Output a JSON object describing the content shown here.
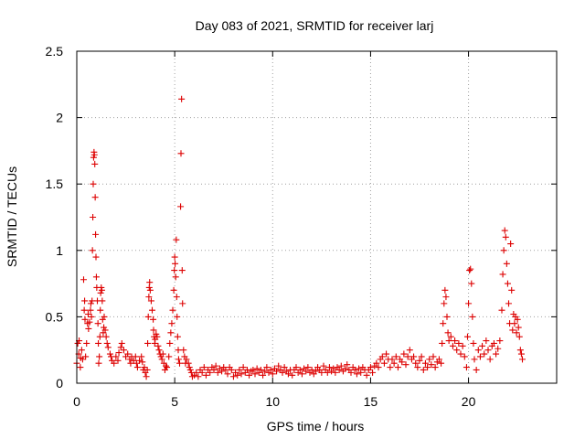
{
  "chart_data": {
    "type": "scatter",
    "title": "Day 083 of 2021, SRMTID for receiver larj",
    "xlabel": "GPS time / hours",
    "ylabel": "SRMTID / TECUs",
    "xlim": [
      0,
      24.5
    ],
    "ylim": [
      0,
      2.5
    ],
    "grid": true,
    "x_ticks": [
      0,
      5,
      10,
      15,
      20
    ],
    "x_tick_labels": [
      "0",
      "5",
      "10",
      "15",
      "20"
    ],
    "y_ticks": [
      0,
      0.5,
      1,
      1.5,
      2,
      2.5
    ],
    "y_tick_labels": [
      "0",
      "0.5",
      "1",
      "1.5",
      "2",
      "2.5"
    ],
    "marker": "+",
    "color": "#dd0000",
    "series": [
      {
        "name": "SRMTID",
        "points": [
          [
            0.0,
            0.15
          ],
          [
            0.05,
            0.3
          ],
          [
            0.1,
            0.22
          ],
          [
            0.12,
            0.32
          ],
          [
            0.18,
            0.12
          ],
          [
            0.2,
            0.19
          ],
          [
            0.25,
            0.25
          ],
          [
            0.3,
            0.18
          ],
          [
            0.35,
            0.78
          ],
          [
            0.38,
            0.55
          ],
          [
            0.4,
            0.62
          ],
          [
            0.42,
            0.48
          ],
          [
            0.45,
            0.2
          ],
          [
            0.5,
            0.3
          ],
          [
            0.55,
            0.45
          ],
          [
            0.58,
            0.52
          ],
          [
            0.6,
            0.41
          ],
          [
            0.65,
            0.46
          ],
          [
            0.7,
            0.55
          ],
          [
            0.72,
            0.6
          ],
          [
            0.75,
            0.5
          ],
          [
            0.78,
            0.62
          ],
          [
            0.8,
            1.0
          ],
          [
            0.82,
            1.25
          ],
          [
            0.84,
            1.5
          ],
          [
            0.86,
            1.7
          ],
          [
            0.88,
            1.74
          ],
          [
            0.9,
            1.72
          ],
          [
            0.92,
            1.65
          ],
          [
            0.94,
            1.4
          ],
          [
            0.96,
            1.12
          ],
          [
            0.98,
            0.95
          ],
          [
            1.0,
            0.8
          ],
          [
            1.02,
            0.72
          ],
          [
            1.05,
            0.62
          ],
          [
            1.08,
            0.45
          ],
          [
            1.1,
            0.3
          ],
          [
            1.12,
            0.15
          ],
          [
            1.15,
            0.2
          ],
          [
            1.18,
            0.35
          ],
          [
            1.2,
            0.55
          ],
          [
            1.22,
            0.68
          ],
          [
            1.25,
            0.72
          ],
          [
            1.28,
            0.7
          ],
          [
            1.3,
            0.62
          ],
          [
            1.32,
            0.48
          ],
          [
            1.35,
            0.38
          ],
          [
            1.38,
            0.42
          ],
          [
            1.4,
            0.5
          ],
          [
            1.45,
            0.4
          ],
          [
            1.5,
            0.35
          ],
          [
            1.55,
            0.3
          ],
          [
            1.6,
            0.27
          ],
          [
            1.7,
            0.22
          ],
          [
            1.75,
            0.2
          ],
          [
            1.8,
            0.17
          ],
          [
            1.9,
            0.15
          ],
          [
            2.0,
            0.2
          ],
          [
            2.1,
            0.17
          ],
          [
            2.15,
            0.23
          ],
          [
            2.25,
            0.27
          ],
          [
            2.3,
            0.3
          ],
          [
            2.4,
            0.25
          ],
          [
            2.5,
            0.2
          ],
          [
            2.6,
            0.22
          ],
          [
            2.7,
            0.18
          ],
          [
            2.75,
            0.15
          ],
          [
            2.8,
            0.2
          ],
          [
            2.9,
            0.17
          ],
          [
            3.0,
            0.2
          ],
          [
            3.05,
            0.15
          ],
          [
            3.1,
            0.12
          ],
          [
            3.2,
            0.17
          ],
          [
            3.3,
            0.2
          ],
          [
            3.35,
            0.16
          ],
          [
            3.4,
            0.1
          ],
          [
            3.45,
            0.12
          ],
          [
            3.5,
            0.08
          ],
          [
            3.55,
            0.05
          ],
          [
            3.6,
            0.1
          ],
          [
            3.62,
            0.3
          ],
          [
            3.65,
            0.5
          ],
          [
            3.68,
            0.65
          ],
          [
            3.7,
            0.72
          ],
          [
            3.72,
            0.76
          ],
          [
            3.75,
            0.7
          ],
          [
            3.8,
            0.62
          ],
          [
            3.85,
            0.55
          ],
          [
            3.9,
            0.48
          ],
          [
            3.92,
            0.4
          ],
          [
            3.95,
            0.35
          ],
          [
            3.98,
            0.3
          ],
          [
            4.0,
            0.33
          ],
          [
            4.05,
            0.37
          ],
          [
            4.1,
            0.35
          ],
          [
            4.15,
            0.28
          ],
          [
            4.2,
            0.25
          ],
          [
            4.25,
            0.22
          ],
          [
            4.3,
            0.2
          ],
          [
            4.35,
            0.18
          ],
          [
            4.4,
            0.22
          ],
          [
            4.45,
            0.15
          ],
          [
            4.5,
            0.1
          ],
          [
            4.55,
            0.13
          ],
          [
            4.6,
            0.12
          ],
          [
            4.7,
            0.2
          ],
          [
            4.75,
            0.3
          ],
          [
            4.8,
            0.38
          ],
          [
            4.85,
            0.45
          ],
          [
            4.9,
            0.55
          ],
          [
            4.95,
            0.7
          ],
          [
            4.98,
            0.85
          ],
          [
            5.0,
            0.95
          ],
          [
            5.02,
            0.9
          ],
          [
            5.05,
            0.8
          ],
          [
            5.08,
            1.08
          ],
          [
            5.1,
            0.65
          ],
          [
            5.12,
            0.5
          ],
          [
            5.15,
            0.35
          ],
          [
            5.18,
            0.25
          ],
          [
            5.2,
            0.18
          ],
          [
            5.25,
            0.15
          ],
          [
            5.3,
            1.33
          ],
          [
            5.32,
            1.73
          ],
          [
            5.35,
            2.14
          ],
          [
            5.38,
            0.85
          ],
          [
            5.4,
            0.6
          ],
          [
            5.45,
            0.25
          ],
          [
            5.5,
            0.2
          ],
          [
            5.55,
            0.15
          ],
          [
            5.6,
            0.18
          ],
          [
            5.7,
            0.15
          ],
          [
            5.75,
            0.12
          ],
          [
            5.8,
            0.1
          ],
          [
            5.85,
            0.08
          ],
          [
            5.9,
            0.05
          ],
          [
            6.0,
            0.06
          ],
          [
            6.1,
            0.08
          ],
          [
            6.2,
            0.05
          ],
          [
            6.3,
            0.1
          ],
          [
            6.4,
            0.08
          ],
          [
            6.5,
            0.12
          ],
          [
            6.6,
            0.06
          ],
          [
            6.7,
            0.1
          ],
          [
            6.8,
            0.08
          ],
          [
            6.9,
            0.12
          ],
          [
            7.0,
            0.1
          ],
          [
            7.1,
            0.13
          ],
          [
            7.2,
            0.08
          ],
          [
            7.3,
            0.11
          ],
          [
            7.4,
            0.09
          ],
          [
            7.5,
            0.12
          ],
          [
            7.6,
            0.1
          ],
          [
            7.7,
            0.07
          ],
          [
            7.8,
            0.12
          ],
          [
            7.9,
            0.1
          ],
          [
            8.0,
            0.05
          ],
          [
            8.1,
            0.08
          ],
          [
            8.2,
            0.06
          ],
          [
            8.3,
            0.1
          ],
          [
            8.4,
            0.07
          ],
          [
            8.5,
            0.12
          ],
          [
            8.6,
            0.08
          ],
          [
            8.7,
            0.1
          ],
          [
            8.8,
            0.06
          ],
          [
            8.9,
            0.09
          ],
          [
            9.0,
            0.1
          ],
          [
            9.1,
            0.07
          ],
          [
            9.2,
            0.11
          ],
          [
            9.3,
            0.08
          ],
          [
            9.4,
            0.1
          ],
          [
            9.5,
            0.06
          ],
          [
            9.6,
            0.09
          ],
          [
            9.7,
            0.12
          ],
          [
            9.8,
            0.08
          ],
          [
            9.9,
            0.1
          ],
          [
            10.0,
            0.07
          ],
          [
            10.1,
            0.11
          ],
          [
            10.2,
            0.09
          ],
          [
            10.3,
            0.13
          ],
          [
            10.4,
            0.1
          ],
          [
            10.5,
            0.08
          ],
          [
            10.6,
            0.12
          ],
          [
            10.7,
            0.09
          ],
          [
            10.8,
            0.07
          ],
          [
            10.9,
            0.1
          ],
          [
            11.0,
            0.06
          ],
          [
            11.1,
            0.1
          ],
          [
            11.2,
            0.12
          ],
          [
            11.3,
            0.08
          ],
          [
            11.4,
            0.1
          ],
          [
            11.5,
            0.07
          ],
          [
            11.6,
            0.11
          ],
          [
            11.7,
            0.09
          ],
          [
            11.8,
            0.12
          ],
          [
            11.9,
            0.08
          ],
          [
            12.0,
            0.1
          ],
          [
            12.1,
            0.07
          ],
          [
            12.2,
            0.09
          ],
          [
            12.3,
            0.12
          ],
          [
            12.4,
            0.1
          ],
          [
            12.5,
            0.08
          ],
          [
            12.6,
            0.13
          ],
          [
            12.7,
            0.1
          ],
          [
            12.8,
            0.08
          ],
          [
            12.9,
            0.12
          ],
          [
            13.0,
            0.09
          ],
          [
            13.1,
            0.11
          ],
          [
            13.2,
            0.08
          ],
          [
            13.3,
            0.12
          ],
          [
            13.4,
            0.1
          ],
          [
            13.5,
            0.13
          ],
          [
            13.6,
            0.09
          ],
          [
            13.7,
            0.11
          ],
          [
            13.8,
            0.14
          ],
          [
            13.9,
            0.1
          ],
          [
            14.0,
            0.08
          ],
          [
            14.1,
            0.12
          ],
          [
            14.2,
            0.1
          ],
          [
            14.3,
            0.07
          ],
          [
            14.4,
            0.11
          ],
          [
            14.5,
            0.08
          ],
          [
            14.6,
            0.12
          ],
          [
            14.7,
            0.1
          ],
          [
            14.8,
            0.06
          ],
          [
            14.9,
            0.1
          ],
          [
            15.0,
            0.12
          ],
          [
            15.1,
            0.08
          ],
          [
            15.2,
            0.13
          ],
          [
            15.3,
            0.15
          ],
          [
            15.4,
            0.12
          ],
          [
            15.5,
            0.18
          ],
          [
            15.6,
            0.2
          ],
          [
            15.7,
            0.15
          ],
          [
            15.8,
            0.22
          ],
          [
            15.9,
            0.18
          ],
          [
            16.0,
            0.12
          ],
          [
            16.1,
            0.18
          ],
          [
            16.2,
            0.15
          ],
          [
            16.3,
            0.2
          ],
          [
            16.4,
            0.12
          ],
          [
            16.5,
            0.18
          ],
          [
            16.6,
            0.16
          ],
          [
            16.7,
            0.22
          ],
          [
            16.8,
            0.14
          ],
          [
            16.9,
            0.2
          ],
          [
            17.0,
            0.25
          ],
          [
            17.1,
            0.18
          ],
          [
            17.2,
            0.2
          ],
          [
            17.3,
            0.15
          ],
          [
            17.4,
            0.12
          ],
          [
            17.5,
            0.17
          ],
          [
            17.6,
            0.2
          ],
          [
            17.7,
            0.1
          ],
          [
            17.8,
            0.15
          ],
          [
            17.9,
            0.12
          ],
          [
            18.0,
            0.18
          ],
          [
            18.1,
            0.14
          ],
          [
            18.2,
            0.2
          ],
          [
            18.3,
            0.12
          ],
          [
            18.4,
            0.16
          ],
          [
            18.5,
            0.18
          ],
          [
            18.6,
            0.15
          ],
          [
            18.65,
            0.3
          ],
          [
            18.7,
            0.45
          ],
          [
            18.75,
            0.6
          ],
          [
            18.8,
            0.7
          ],
          [
            18.85,
            0.65
          ],
          [
            18.9,
            0.5
          ],
          [
            18.95,
            0.38
          ],
          [
            19.0,
            0.32
          ],
          [
            19.1,
            0.35
          ],
          [
            19.2,
            0.28
          ],
          [
            19.3,
            0.32
          ],
          [
            19.4,
            0.25
          ],
          [
            19.5,
            0.3
          ],
          [
            19.6,
            0.22
          ],
          [
            19.7,
            0.28
          ],
          [
            19.8,
            0.2
          ],
          [
            19.9,
            0.12
          ],
          [
            19.95,
            0.35
          ],
          [
            20.0,
            0.6
          ],
          [
            20.05,
            0.85
          ],
          [
            20.1,
            0.86
          ],
          [
            20.15,
            0.75
          ],
          [
            20.2,
            0.5
          ],
          [
            20.25,
            0.3
          ],
          [
            20.3,
            0.18
          ],
          [
            20.4,
            0.1
          ],
          [
            20.5,
            0.25
          ],
          [
            20.6,
            0.2
          ],
          [
            20.7,
            0.28
          ],
          [
            20.8,
            0.22
          ],
          [
            20.9,
            0.32
          ],
          [
            21.0,
            0.25
          ],
          [
            21.1,
            0.18
          ],
          [
            21.2,
            0.28
          ],
          [
            21.3,
            0.3
          ],
          [
            21.4,
            0.22
          ],
          [
            21.5,
            0.26
          ],
          [
            21.6,
            0.32
          ],
          [
            21.7,
            0.55
          ],
          [
            21.75,
            0.82
          ],
          [
            21.8,
            1.0
          ],
          [
            21.85,
            1.15
          ],
          [
            21.9,
            1.1
          ],
          [
            21.95,
            0.9
          ],
          [
            22.0,
            0.75
          ],
          [
            22.05,
            0.6
          ],
          [
            22.1,
            0.45
          ],
          [
            22.15,
            1.05
          ],
          [
            22.2,
            0.7
          ],
          [
            22.25,
            0.4
          ],
          [
            22.3,
            0.52
          ],
          [
            22.35,
            0.45
          ],
          [
            22.4,
            0.5
          ],
          [
            22.45,
            0.38
          ],
          [
            22.5,
            0.48
          ],
          [
            22.55,
            0.42
          ],
          [
            22.6,
            0.35
          ],
          [
            22.65,
            0.25
          ],
          [
            22.7,
            0.22
          ],
          [
            22.75,
            0.18
          ]
        ]
      }
    ]
  }
}
